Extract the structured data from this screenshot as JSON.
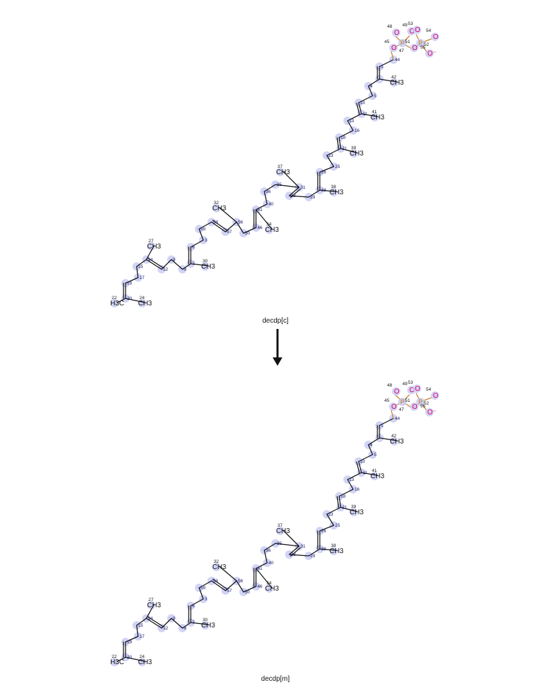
{
  "reaction": {
    "reactant_label": "decdp[c]",
    "product_label": "decdp[m]",
    "arrow_direction": "down"
  },
  "molecule": {
    "chain_atoms": [
      {
        "id": "44"
      },
      {
        "id": "1"
      },
      {
        "id": "2"
      },
      {
        "id": "4"
      },
      {
        "id": "5"
      },
      {
        "id": "10"
      },
      {
        "id": "11"
      },
      {
        "id": "13"
      },
      {
        "id": "16"
      },
      {
        "id": "18"
      },
      {
        "id": "21"
      },
      {
        "id": "23"
      },
      {
        "id": "25"
      },
      {
        "id": "26"
      },
      {
        "id": "28"
      },
      {
        "id": "29"
      },
      {
        "id": "33"
      },
      {
        "id": "31"
      },
      {
        "id": "35"
      },
      {
        "id": "36"
      },
      {
        "id": "40"
      },
      {
        "id": "41"
      },
      {
        "id": "46"
      },
      {
        "id": "50"
      },
      {
        "id": "56"
      },
      {
        "id": "57"
      },
      {
        "id": "58"
      },
      {
        "id": "59"
      },
      {
        "id": "3"
      },
      {
        "id": "6"
      },
      {
        "id": "7"
      },
      {
        "id": "8"
      },
      {
        "id": "9"
      },
      {
        "id": "12"
      },
      {
        "id": "14"
      },
      {
        "id": "15"
      },
      {
        "id": "17"
      },
      {
        "id": "19"
      },
      {
        "id": "20"
      }
    ],
    "methyl_atoms": [
      {
        "id": "42",
        "text": "CH3"
      },
      {
        "id": "41",
        "text": "CH3"
      },
      {
        "id": "39",
        "text": "CH3"
      },
      {
        "id": "38",
        "text": "CH3"
      },
      {
        "id": "37",
        "text": "CH3"
      },
      {
        "id": "34",
        "text": "CH3"
      },
      {
        "id": "32",
        "text": "CH3"
      },
      {
        "id": "30",
        "text": "CH3"
      },
      {
        "id": "27",
        "text": "CH3"
      },
      {
        "id": "24",
        "text": "CH3"
      },
      {
        "id": "22",
        "text": "H3C"
      }
    ],
    "phosphate": {
      "P1": "P",
      "P2": "P",
      "O": "O",
      "O_minus": "O⁻",
      "atom_ids": [
        "45",
        "47",
        "48",
        "49",
        "51",
        "52",
        "53",
        "54",
        "55"
      ]
    }
  },
  "colors": {
    "halo": "#c9ccf3",
    "oxygen": "#e0006a",
    "phosphorus": "#c87f2a",
    "bond": "#111111"
  }
}
